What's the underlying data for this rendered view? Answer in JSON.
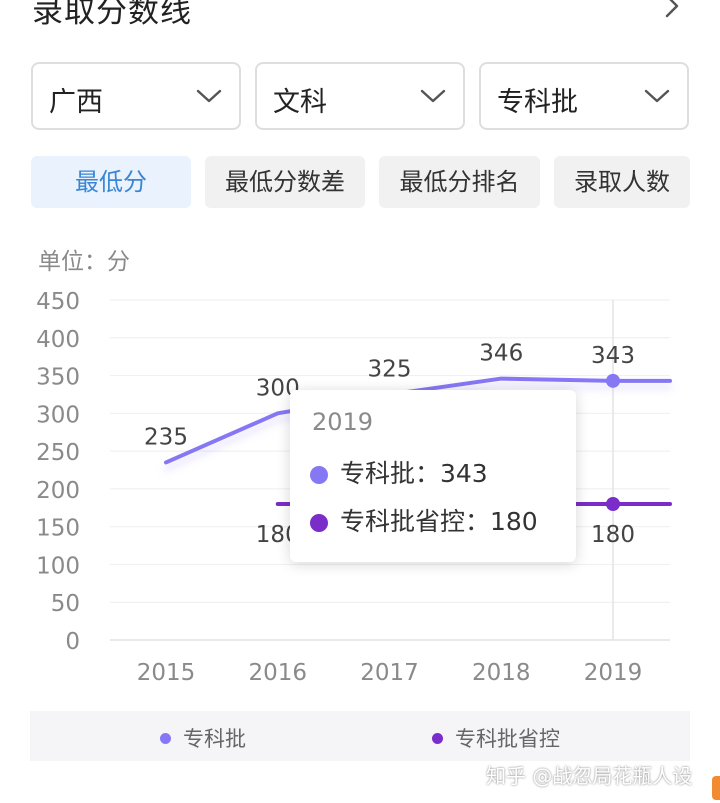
{
  "header": {
    "title": "录取分数线",
    "chevron_icon": "chevron-right-icon"
  },
  "filters": [
    {
      "label": "广西",
      "icon": "chevron-down-icon"
    },
    {
      "label": "文科",
      "icon": "chevron-down-icon"
    },
    {
      "label": "专科批",
      "icon": "chevron-down-icon"
    }
  ],
  "tabs": [
    {
      "label": "最低分",
      "active": true
    },
    {
      "label": "最低分数差",
      "active": false
    },
    {
      "label": "最低分排名",
      "active": false
    },
    {
      "label": "录取人数",
      "active": false
    }
  ],
  "unit_label": "单位：分",
  "colors": {
    "series1": "#8678f4",
    "series2": "#7a2dc8",
    "accent": "#3a86d4",
    "tab_active_bg": "#eaf3fd"
  },
  "chart_data": {
    "type": "line",
    "x": [
      "2015",
      "2016",
      "2017",
      "2018",
      "2019"
    ],
    "ylim": [
      0,
      450
    ],
    "yticks": [
      0,
      50,
      100,
      150,
      200,
      250,
      300,
      350,
      400,
      450
    ],
    "grid": true,
    "legend_position": "bottom",
    "series": [
      {
        "name": "专科批",
        "values": [
          235,
          300,
          325,
          346,
          343
        ]
      },
      {
        "name": "专科批省控",
        "values": [
          null,
          180,
          180,
          180,
          180
        ]
      }
    ]
  },
  "tooltip": {
    "title": "2019",
    "rows": [
      {
        "label": "专科批：343"
      },
      {
        "label": "专科批省控：180"
      }
    ]
  },
  "legend": [
    {
      "label": "专科批"
    },
    {
      "label": "专科批省控"
    }
  ],
  "watermark": "知乎 @战忽局花瓶人设"
}
